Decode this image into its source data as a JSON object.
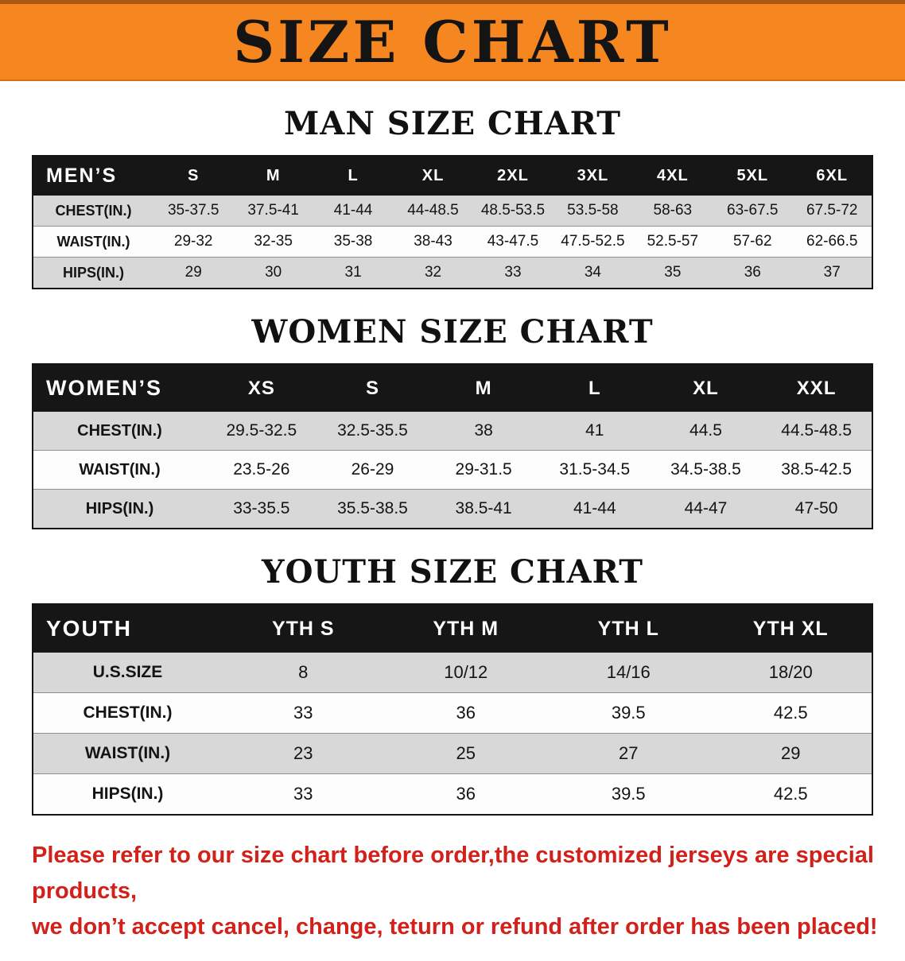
{
  "banner": {
    "title": "SIZE CHART",
    "background_color": "#f6861f",
    "text_color": "#141414"
  },
  "sections": {
    "men": {
      "heading": "MAN SIZE CHART",
      "table": {
        "header": [
          "MEN’S",
          "S",
          "M",
          "L",
          "XL",
          "2XL",
          "3XL",
          "4XL",
          "5XL",
          "6XL"
        ],
        "rows": [
          [
            "CHEST(IN.)",
            "35-37.5",
            "37.5-41",
            "41-44",
            "44-48.5",
            "48.5-53.5",
            "53.5-58",
            "58-63",
            "63-67.5",
            "67.5-72"
          ],
          [
            "WAIST(IN.)",
            "29-32",
            "32-35",
            "35-38",
            "38-43",
            "43-47.5",
            "47.5-52.5",
            "52.5-57",
            "57-62",
            "62-66.5"
          ],
          [
            "HIPS(IN.)",
            "29",
            "30",
            "31",
            "32",
            "33",
            "34",
            "35",
            "36",
            "37"
          ]
        ]
      }
    },
    "women": {
      "heading": "WOMEN SIZE CHART",
      "table": {
        "header": [
          "WOMEN’S",
          "XS",
          "S",
          "M",
          "L",
          "XL",
          "XXL"
        ],
        "rows": [
          [
            "CHEST(IN.)",
            "29.5-32.5",
            "32.5-35.5",
            "38",
            "41",
            "44.5",
            "44.5-48.5"
          ],
          [
            "WAIST(IN.)",
            "23.5-26",
            "26-29",
            "29-31.5",
            "31.5-34.5",
            "34.5-38.5",
            "38.5-42.5"
          ],
          [
            "HIPS(IN.)",
            "33-35.5",
            "35.5-38.5",
            "38.5-41",
            "41-44",
            "44-47",
            "47-50"
          ]
        ]
      }
    },
    "youth": {
      "heading": "YOUTH SIZE CHART",
      "table": {
        "header": [
          "YOUTH",
          "YTH S",
          "YTH M",
          "YTH L",
          "YTH XL"
        ],
        "rows": [
          [
            "U.S.SIZE",
            "8",
            "10/12",
            "14/16",
            "18/20"
          ],
          [
            "CHEST(IN.)",
            "33",
            "36",
            "39.5",
            "42.5"
          ],
          [
            "WAIST(IN.)",
            "23",
            "25",
            "27",
            "29"
          ],
          [
            "HIPS(IN.)",
            "33",
            "36",
            "39.5",
            "42.5"
          ]
        ]
      }
    }
  },
  "notice": {
    "text_color": "#d2201a",
    "lines": [
      "Please refer to our size chart before order,the customized jerseys are special products,",
      "we don’t accept cancel, change, teturn or refund after order has been placed!"
    ]
  }
}
